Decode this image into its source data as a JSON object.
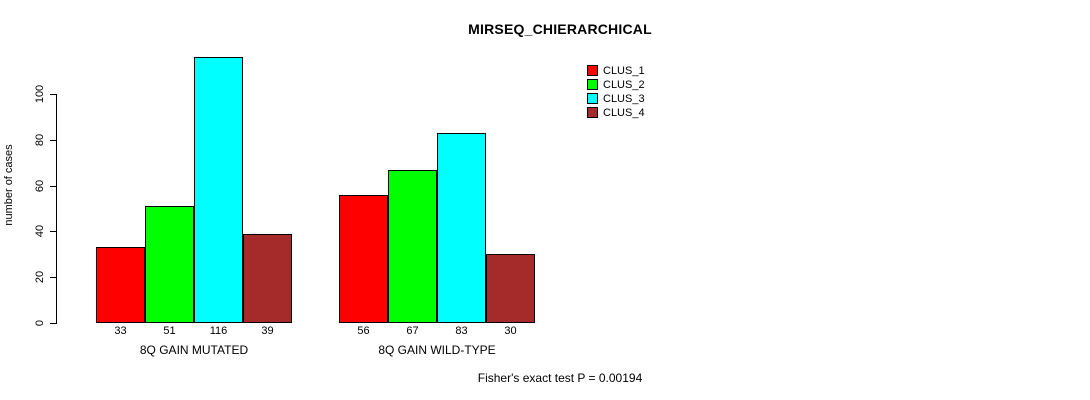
{
  "title": "MIRSEQ_CHIERARCHICAL",
  "footer": "Fisher's exact test P = 0.00194",
  "colors": {
    "clus_1": "#ff0000",
    "clus_2": "#00ff00",
    "clus_3": "#00ffff",
    "clus_4": "#a52a2a",
    "axis": "#000000",
    "background": "#ffffff"
  },
  "chart_data": {
    "type": "bar",
    "title": "MIRSEQ_CHIERARCHICAL",
    "xlabel": "",
    "ylabel": "number of cases",
    "categories": [
      "8Q GAIN MUTATED",
      "8Q GAIN WILD-TYPE"
    ],
    "series": [
      {
        "name": "CLUS_1",
        "color": "#ff0000",
        "values": [
          33,
          56
        ]
      },
      {
        "name": "CLUS_2",
        "color": "#00ff00",
        "values": [
          51,
          67
        ]
      },
      {
        "name": "CLUS_3",
        "color": "#00ffff",
        "values": [
          116,
          83
        ]
      },
      {
        "name": "CLUS_4",
        "color": "#a52a2a",
        "values": [
          39,
          30
        ]
      }
    ],
    "yticks": [
      0,
      20,
      40,
      60,
      80,
      100
    ],
    "ylim": [
      0,
      116
    ],
    "grid": false,
    "bar_value_labels_shown": true,
    "legend_position": "top-right",
    "annotation": "Fisher's exact test P = 0.00194"
  }
}
